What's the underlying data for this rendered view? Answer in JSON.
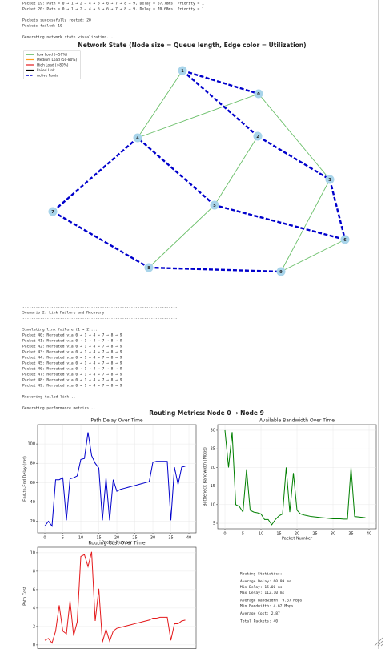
{
  "top_log": [
    [
      "Packet 19: Path = 0 → 1 → 2 → 4 → 5 → 6 → 7 → 8 → 9, Delay = 67.78ms, Priority = 1",
      "Packet 20: Path = 0 → 1 → 2 → 4 → 5 → 6 → 7 → 8 → 9, Delay = 70.68ms, Priority = 1"
    ],
    [
      "Packets successfully routed: 20",
      "Packets failed: 10"
    ],
    [
      "Generating network state visualization..."
    ]
  ],
  "network": {
    "title": "Network State (Node size = Queue length, Edge color = Utilization)",
    "legend": [
      {
        "label": "Low Load (<50%)",
        "color": "#2ca02c",
        "dashed": false
      },
      {
        "label": "Medium Load (50-80%)",
        "color": "#ff9f1c",
        "dashed": false
      },
      {
        "label": "High Load (>80%)",
        "color": "#e41a1c",
        "dashed": false
      },
      {
        "label": "Failed Link",
        "color": "#000000",
        "dashed": false
      },
      {
        "label": "Active Route",
        "color": "#0000cc",
        "dashed": true
      }
    ],
    "nodes": [
      "0",
      "1",
      "2",
      "3",
      "4",
      "5",
      "6",
      "7",
      "8",
      "9"
    ],
    "edges": [
      {
        "source": 1,
        "target": 4,
        "color": "#6abf69",
        "dashed": false
      },
      {
        "source": 4,
        "target": 0,
        "color": "#6abf69",
        "dashed": false
      },
      {
        "source": 0,
        "target": 3,
        "color": "#6abf69",
        "dashed": false
      },
      {
        "source": 2,
        "target": 5,
        "color": "#6abf69",
        "dashed": false
      },
      {
        "source": 5,
        "target": 8,
        "color": "#6abf69",
        "dashed": false
      },
      {
        "source": 3,
        "target": 9,
        "color": "#6abf69",
        "dashed": false
      },
      {
        "source": 9,
        "target": 6,
        "color": "#6abf69",
        "dashed": false
      },
      {
        "source": 1,
        "target": 0,
        "color": "#0000cc",
        "dashed": true
      },
      {
        "source": 1,
        "target": 2,
        "color": "#0000cc",
        "dashed": true
      },
      {
        "source": 2,
        "target": 3,
        "color": "#0000cc",
        "dashed": true
      },
      {
        "source": 3,
        "target": 6,
        "color": "#0000cc",
        "dashed": true
      },
      {
        "source": 6,
        "target": 5,
        "color": "#0000cc",
        "dashed": true
      },
      {
        "source": 5,
        "target": 4,
        "color": "#0000cc",
        "dashed": true
      },
      {
        "source": 4,
        "target": 7,
        "color": "#0000cc",
        "dashed": true
      },
      {
        "source": 7,
        "target": 8,
        "color": "#0000cc",
        "dashed": true
      },
      {
        "source": 8,
        "target": 9,
        "color": "#0000cc",
        "dashed": true
      }
    ]
  },
  "mid_log": [
    [
      "----------------------------------------------------------------------",
      "Scenario 2: Link Failure and Recovery",
      "----------------------------------------------------------------------"
    ],
    [
      "Simulating link failure (1 → 2)...",
      "Packet 40: Rerouted via 0 → 1 → 4 → 7 → 8 → 9",
      "Packet 41: Rerouted via 0 → 1 → 4 → 7 → 8 → 9",
      "Packet 42: Rerouted via 0 → 1 → 4 → 7 → 8 → 9",
      "Packet 43: Rerouted via 0 → 1 → 4 → 7 → 8 → 9",
      "Packet 44: Rerouted via 0 → 1 → 4 → 7 → 8 → 9",
      "Packet 45: Rerouted via 0 → 1 → 4 → 7 → 8 → 9",
      "Packet 46: Rerouted via 0 → 1 → 4 → 7 → 8 → 9",
      "Packet 47: Rerouted via 0 → 1 → 4 → 7 → 8 → 9",
      "Packet 48: Rerouted via 0 → 1 → 4 → 7 → 8 → 9",
      "Packet 49: Rerouted via 0 → 1 → 4 → 7 → 8 → 9"
    ],
    [
      "Restoring failed link..."
    ],
    [
      "Generating performance metrics..."
    ]
  ],
  "figure_title": "Routing Metrics: Node 0 → Node 9",
  "chart_data": [
    {
      "type": "line",
      "title": "Path Delay Over Time",
      "xlabel": "Packet Number",
      "ylabel": "End-to-End Delay (ms)",
      "x": [
        0,
        1,
        2,
        3,
        4,
        5,
        6,
        7,
        8,
        9,
        10,
        11,
        12,
        13,
        14,
        15,
        16,
        17,
        18,
        19,
        20,
        21,
        22,
        23,
        24,
        25,
        26,
        27,
        28,
        29,
        30,
        31,
        32,
        33,
        34,
        35,
        36,
        37,
        38,
        39
      ],
      "values": [
        15,
        20,
        15,
        63,
        63,
        65,
        21,
        64,
        65,
        67,
        84,
        85,
        112.1,
        88,
        80,
        75,
        21,
        65,
        21,
        63,
        51,
        53,
        54,
        55,
        56,
        57,
        58,
        59,
        60,
        61,
        81,
        82,
        82,
        82,
        82,
        21,
        76,
        58,
        76,
        77
      ],
      "color": "#0000cc",
      "xlim": [
        -2,
        42
      ],
      "ylim": [
        8,
        120
      ],
      "xticks": [
        0,
        5,
        10,
        15,
        20,
        25,
        30,
        35,
        40
      ],
      "yticks": [
        20,
        40,
        60,
        80,
        100
      ],
      "grid": true
    },
    {
      "type": "line",
      "title": "Available Bandwidth Over Time",
      "xlabel": "Packet Number",
      "ylabel": "Bottleneck Bandwidth (Mbps)",
      "x": [
        0,
        1,
        2,
        3,
        4,
        5,
        6,
        7,
        8,
        9,
        10,
        11,
        12,
        13,
        14,
        15,
        16,
        17,
        18,
        19,
        20,
        21,
        22,
        23,
        24,
        25,
        26,
        27,
        28,
        29,
        30,
        31,
        32,
        33,
        34,
        35,
        36,
        37,
        38,
        39
      ],
      "values": [
        30,
        20,
        29.5,
        10,
        9.5,
        8,
        19.5,
        8.5,
        8,
        7.8,
        7.5,
        6,
        6,
        4.6,
        6,
        7,
        7.5,
        20,
        8,
        18.5,
        8.5,
        7.5,
        7.2,
        7,
        6.8,
        6.7,
        6.6,
        6.5,
        6.4,
        6.3,
        6.2,
        6.2,
        6.2,
        6.1,
        6.1,
        20,
        6.8,
        6.7,
        6.6,
        6.5
      ],
      "color": "#007f00",
      "xlim": [
        -2,
        42
      ],
      "ylim": [
        3.5,
        31.5
      ],
      "xticks": [
        0,
        5,
        10,
        15,
        20,
        25,
        30,
        35,
        40
      ],
      "yticks": [
        5,
        10,
        15,
        20,
        25,
        30
      ],
      "grid": true
    },
    {
      "type": "line",
      "title": "Routing Cost Over Time",
      "ylabel": "Path Cost",
      "x": [
        0,
        1,
        2,
        3,
        4,
        5,
        6,
        7,
        8,
        9,
        10,
        11,
        12,
        13,
        14,
        15,
        16,
        17,
        18,
        19,
        20,
        21,
        22,
        23,
        24,
        25,
        26,
        27,
        28,
        29,
        30,
        31,
        32,
        33,
        34,
        35,
        36,
        37,
        38,
        39
      ],
      "values": [
        0.5,
        0.7,
        0.2,
        1.5,
        4.3,
        1.5,
        1.2,
        4.8,
        1,
        2.5,
        9.6,
        9.8,
        8.5,
        10.1,
        2.6,
        6.1,
        0.3,
        1.7,
        0.4,
        1.5,
        1.8,
        1.9,
        2,
        2.1,
        2.2,
        2.3,
        2.4,
        2.5,
        2.6,
        2.7,
        2.9,
        2.9,
        3,
        3,
        3,
        0.5,
        2.3,
        2.3,
        2.6,
        2.7
      ],
      "color": "#e41a1c",
      "xlim": [
        -2,
        42
      ],
      "ylim": [
        -0.4,
        10.6
      ],
      "yticks": [
        0,
        2,
        4,
        6,
        8,
        10
      ],
      "grid": true
    }
  ],
  "stats": [
    [
      "Routing Statistics:"
    ],
    [
      "Average Delay: 60.99 ms",
      "Min Delay: 15.00 ms",
      "Max Delay: 112.10 ms"
    ],
    [
      "Average Bandwidth: 9.67 Mbps",
      "Min Bandwidth: 4.62 Mbps"
    ],
    [
      "Average Cost: 2.87"
    ],
    [
      "Total Packets: 40"
    ]
  ]
}
